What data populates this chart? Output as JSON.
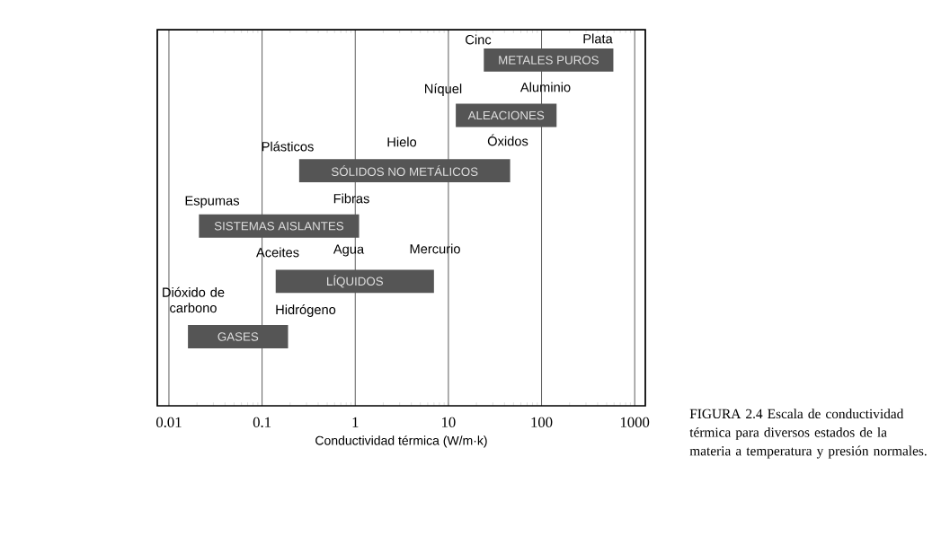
{
  "chart_data": {
    "type": "bar",
    "orientation": "horizontal",
    "log": "x",
    "grid": "x",
    "xlabel": "Conductividad térmica (W/m·k)",
    "categories": [
      "METALES PUROS",
      "ALEACIONES",
      "SÓLIDOS NO METÁLICOS",
      "SISTEMAS AISLANTES",
      "LÍQUIDOS",
      "GASES"
    ],
    "base": [
      24,
      12,
      0.25,
      0.021,
      0.14,
      0.016
    ],
    "values": [
      566,
      133,
      45.75,
      1.079,
      6.86,
      0.174
    ],
    "color": "#555555",
    "xlim": [
      0.0075,
      1300
    ],
    "xticks": [
      0.01,
      0.1,
      1,
      10,
      100,
      1000
    ],
    "tick_labels": "x",
    "annotations": [
      "Cinc",
      "Plata",
      "Níquel",
      "Aluminio",
      "Plásticos",
      "Hielo",
      "Óxidos",
      "Espumas",
      "Fibras",
      "Aceites",
      "Agua",
      "Mercurio",
      "Dióxido de carbono",
      "Hidrógeno",
      "FIGURA 2.4 Escala de conductividad térmica para diversos estados de la materia a temperatura y presión normales."
    ]
  }
}
